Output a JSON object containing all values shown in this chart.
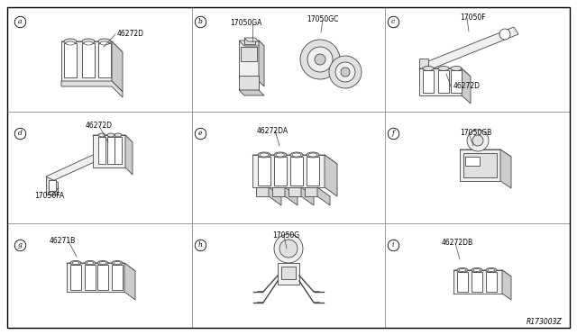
{
  "background_color": "#ffffff",
  "border_color": "#000000",
  "grid_color": "#999999",
  "text_color": "#000000",
  "line_color": "#444444",
  "fill_light": "#f0f0f0",
  "fill_mid": "#e0e0e0",
  "fill_dark": "#cccccc",
  "watermark": "R173003Z",
  "fig_width": 6.4,
  "fig_height": 3.72,
  "cells": [
    {
      "row": 0,
      "col": 0,
      "label": "a",
      "parts": [
        "46272D"
      ]
    },
    {
      "row": 0,
      "col": 1,
      "label": "b",
      "parts": [
        "17050GA",
        "17050GC"
      ]
    },
    {
      "row": 0,
      "col": 2,
      "label": "c",
      "parts": [
        "17050F",
        "46272D"
      ]
    },
    {
      "row": 1,
      "col": 0,
      "label": "d",
      "parts": [
        "46272D",
        "17050FA"
      ]
    },
    {
      "row": 1,
      "col": 1,
      "label": "e",
      "parts": [
        "46272DA"
      ]
    },
    {
      "row": 1,
      "col": 2,
      "label": "f",
      "parts": [
        "17050GB"
      ]
    },
    {
      "row": 2,
      "col": 0,
      "label": "g",
      "parts": [
        "46271B"
      ]
    },
    {
      "row": 2,
      "col": 1,
      "label": "h",
      "parts": [
        "17050G"
      ]
    },
    {
      "row": 2,
      "col": 2,
      "label": "i",
      "parts": [
        "46272DB"
      ]
    }
  ]
}
